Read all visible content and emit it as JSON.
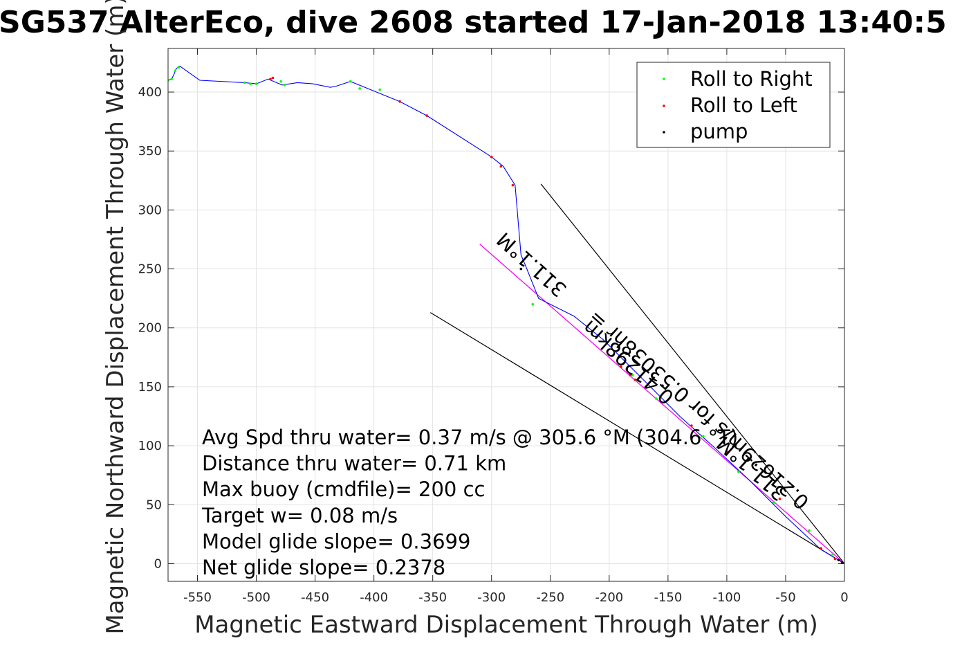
{
  "chart_data": {
    "type": "line",
    "title": "SG537 AlterEco, dive 2608 started 17-Jan-2018 13:40:5",
    "xlabel": "Magnetic Eastward Displacement Through Water (m)",
    "ylabel": "Magnetic Northward Displacement Through Water (m)",
    "xlim": [
      -575,
      0
    ],
    "ylim": [
      -15,
      437
    ],
    "xticks": [
      -550,
      -500,
      -450,
      -400,
      -350,
      -300,
      -250,
      -200,
      -150,
      -100,
      -50,
      0
    ],
    "yticks": [
      0,
      50,
      100,
      150,
      200,
      250,
      300,
      350,
      400
    ],
    "grid": true,
    "legend_position": "top-right",
    "legend": [
      {
        "label": "Roll to Right",
        "color": "#00ff00"
      },
      {
        "label": "Roll to Left",
        "color": "#ff0000"
      },
      {
        "label": "pump",
        "color": "#000000"
      }
    ],
    "track": {
      "color": "#0000ff",
      "x": [
        0,
        -20,
        -50,
        -80,
        -110,
        -140,
        -165,
        -185,
        -205,
        -230,
        -260,
        -270,
        -275,
        -280,
        -290,
        -300,
        -355,
        -378,
        -420,
        -432,
        -437,
        -452,
        -465,
        -478,
        -490,
        -500,
        -510,
        -548,
        -565,
        -568,
        -570,
        -572,
        -575
      ],
      "y": [
        0,
        12,
        40,
        70,
        98,
        125,
        150,
        170,
        190,
        210,
        225,
        250,
        262,
        321,
        337,
        345,
        380,
        392,
        409,
        405,
        404,
        407,
        408,
        406,
        411,
        407,
        408,
        410,
        422,
        420,
        415,
        411,
        410
      ]
    },
    "model_line": {
      "color": "#ff00ff",
      "x": [
        0,
        -310
      ],
      "y": [
        0,
        271
      ]
    },
    "cone_lines": {
      "color": "#000000",
      "upper": {
        "x": [
          0,
          -258
        ],
        "y": [
          0,
          322
        ]
      },
      "lower": {
        "x": [
          0,
          -352
        ],
        "y": [
          0,
          213
        ]
      }
    },
    "roll_right_points": {
      "x": [
        -575,
        -572,
        -569,
        -566,
        -510,
        -505,
        -500,
        -479,
        -476,
        -420,
        -412,
        -395,
        -265,
        -180,
        -160,
        -120,
        -90,
        -60,
        -30,
        -10
      ],
      "y": [
        410,
        411,
        418,
        421,
        408,
        407,
        407,
        409,
        406,
        409,
        403,
        402,
        220,
        160,
        140,
        108,
        78,
        52,
        28,
        8
      ]
    },
    "roll_left_points": {
      "x": [
        -488,
        -486,
        -378,
        -355,
        -300,
        -292,
        -282,
        -190,
        -185,
        -182,
        -178,
        -130,
        -100,
        -55,
        -20,
        -8
      ],
      "y": [
        411,
        412,
        392,
        380,
        345,
        337,
        321,
        167,
        165,
        160,
        156,
        117,
        95,
        55,
        13,
        4
      ]
    },
    "pump_points": {
      "x": [
        -2,
        -5,
        -275
      ],
      "y": [
        1,
        3,
        250
      ]
    },
    "annotations": [
      "Avg Spd thru water=  0.37 m/s @ 305.6 °M (304.6 °T)",
      "Distance thru water=  0.71 km",
      "Max buoy (cmdfile)= 200 cc",
      "Target w= 0.08 m/s",
      "Model glide slope= 0.3699",
      "Net glide slope= 0.2378"
    ],
    "rotated_labels": [
      {
        "text": "311.1°M",
        "at": [
          -262,
          258
        ],
        "rotation_deg": 41.8
      },
      {
        "text": "0.41298km",
        "at": [
          -180,
          175
        ],
        "rotation_deg": 41.8
      },
      {
        "text": "0.21629m/s for 0.53038hr =",
        "at": [
          -120,
          135
        ],
        "rotation_deg": 41.8
      },
      {
        "text": "311.1°M",
        "at": [
          -75,
          85
        ],
        "rotation_deg": 41.8
      }
    ]
  }
}
